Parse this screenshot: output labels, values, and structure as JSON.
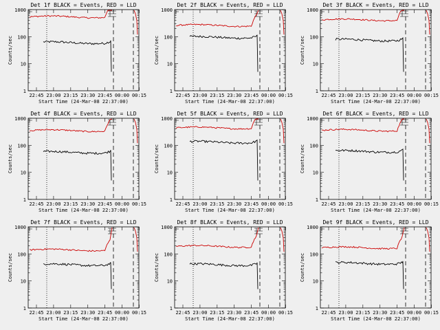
{
  "figure": {
    "x_tick_labels": [
      "22:45",
      "23:00",
      "23:15",
      "23:30",
      "23:45",
      "00:00",
      "00:15"
    ],
    "x_label": "Start Time (24-Mar-08 22:37:00)",
    "y_tick_labels": [
      "1",
      "10",
      "100",
      "1000"
    ],
    "y_label": "Counts/sec",
    "colors": {
      "events": "#000000",
      "lld": "#cc0000",
      "background": "#efefef"
    }
  },
  "chart_data": [
    {
      "type": "line",
      "title": "Det 1f BLACK = Events, RED = LLD",
      "xlabel": "Start Time (24-Mar-08 22:37:00)",
      "ylabel": "Counts/sec",
      "ylim": [
        1,
        1000
      ],
      "y_scale": "log",
      "series": [
        {
          "name": "Events",
          "color": "#000000",
          "level": 60
        },
        {
          "name": "LLD",
          "color": "#cc0000",
          "level": 540
        }
      ]
    },
    {
      "type": "line",
      "title": "Det 2f BLACK = Events, RED = LLD",
      "xlabel": "Start Time (24-Mar-08 22:37:00)",
      "ylabel": "Counts/sec",
      "ylim": [
        1,
        1000
      ],
      "y_scale": "log",
      "series": [
        {
          "name": "Events",
          "color": "#000000",
          "level": 95
        },
        {
          "name": "LLD",
          "color": "#cc0000",
          "level": 260
        }
      ]
    },
    {
      "type": "line",
      "title": "Det 3f BLACK = Events, RED = LLD",
      "xlabel": "Start Time (24-Mar-08 22:37:00)",
      "ylabel": "Counts/sec",
      "ylim": [
        1,
        1000
      ],
      "y_scale": "log",
      "series": [
        {
          "name": "Events",
          "color": "#000000",
          "level": 75
        },
        {
          "name": "LLD",
          "color": "#cc0000",
          "level": 420
        }
      ]
    },
    {
      "type": "line",
      "title": "Det 4f BLACK = Events, RED = LLD",
      "xlabel": "Start Time (24-Mar-08 22:37:00)",
      "ylabel": "Counts/sec",
      "ylim": [
        1,
        1000
      ],
      "y_scale": "log",
      "series": [
        {
          "name": "Events",
          "color": "#000000",
          "level": 55
        },
        {
          "name": "LLD",
          "color": "#cc0000",
          "level": 350
        }
      ]
    },
    {
      "type": "line",
      "title": "Det 5f BLACK = Events, RED = LLD",
      "xlabel": "Start Time (24-Mar-08 22:37:00)",
      "ylabel": "Counts/sec",
      "ylim": [
        1,
        1000
      ],
      "y_scale": "log",
      "series": [
        {
          "name": "Events",
          "color": "#000000",
          "level": 130
        },
        {
          "name": "LLD",
          "color": "#cc0000",
          "level": 440
        }
      ]
    },
    {
      "type": "line",
      "title": "Det 6f BLACK = Events, RED = LLD",
      "xlabel": "Start Time (24-Mar-08 22:37:00)",
      "ylabel": "Counts/sec",
      "ylim": [
        1,
        1000
      ],
      "y_scale": "log",
      "series": [
        {
          "name": "Events",
          "color": "#000000",
          "level": 60
        },
        {
          "name": "LLD",
          "color": "#cc0000",
          "level": 360
        }
      ]
    },
    {
      "type": "line",
      "title": "Det 7f BLACK = Events, RED = LLD",
      "xlabel": "Start Time (24-Mar-08 22:37:00)",
      "ylabel": "Counts/sec",
      "ylim": [
        1,
        1000
      ],
      "y_scale": "log",
      "series": [
        {
          "name": "Events",
          "color": "#000000",
          "level": 40
        },
        {
          "name": "LLD",
          "color": "#cc0000",
          "level": 140
        }
      ]
    },
    {
      "type": "line",
      "title": "Det 8f BLACK = Events, RED = LLD",
      "xlabel": "Start Time (24-Mar-08 22:37:00)",
      "ylabel": "Counts/sec",
      "ylim": [
        1,
        1000
      ],
      "y_scale": "log",
      "series": [
        {
          "name": "Events",
          "color": "#000000",
          "level": 40
        },
        {
          "name": "LLD",
          "color": "#cc0000",
          "level": 190
        }
      ]
    },
    {
      "type": "line",
      "title": "Det 9f BLACK = Events, RED = LLD",
      "xlabel": "Start Time (24-Mar-08 22:37:00)",
      "ylabel": "Counts/sec",
      "ylim": [
        1,
        1000
      ],
      "y_scale": "log",
      "series": [
        {
          "name": "Events",
          "color": "#000000",
          "level": 45
        },
        {
          "name": "LLD",
          "color": "#cc0000",
          "level": 170
        }
      ]
    }
  ]
}
